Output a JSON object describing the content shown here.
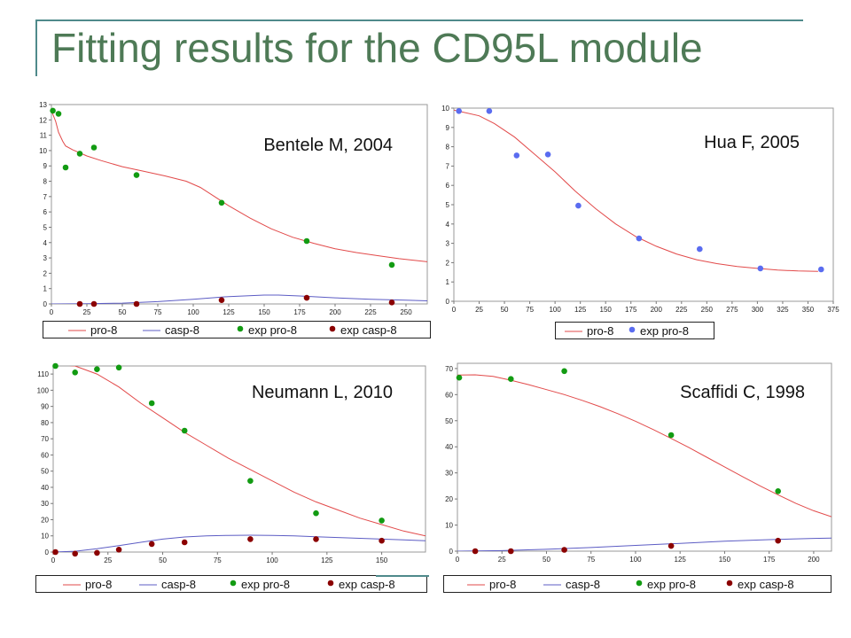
{
  "slide": {
    "title": "Fitting results for the CD95L module"
  },
  "colors": {
    "fit_pro": "#e24a4a",
    "fit_casp": "#5c5cc4",
    "exp_pro_green": "#129b12",
    "exp_pro_blue": "#5a6cf0",
    "exp_casp": "#8b0000",
    "title": "#4e7a56"
  },
  "chart_data": [
    {
      "type": "scatter",
      "title": "Bentele M, 2004",
      "xlim": [
        0,
        265
      ],
      "ylim": [
        0,
        13
      ],
      "xticks": [
        0,
        25,
        50,
        75,
        100,
        125,
        150,
        175,
        200,
        225,
        250
      ],
      "yticks": [
        0,
        1,
        2,
        3,
        4,
        5,
        6,
        7,
        8,
        9,
        10,
        11,
        12,
        13
      ],
      "legend": [
        "pro-8",
        "casp-8",
        "exp pro-8",
        "exp casp-8"
      ],
      "series": [
        {
          "name": "pro-8",
          "kind": "line",
          "color": "#e24a4a",
          "x": [
            0,
            3,
            5,
            8,
            10,
            15,
            20,
            25,
            35,
            50,
            65,
            80,
            95,
            105,
            115,
            125,
            140,
            155,
            170,
            185,
            200,
            215,
            230,
            245,
            265
          ],
          "y": [
            12.6,
            11.9,
            11.2,
            10.6,
            10.3,
            10.05,
            9.85,
            9.65,
            9.35,
            8.95,
            8.65,
            8.35,
            8.0,
            7.6,
            7.0,
            6.4,
            5.6,
            4.9,
            4.35,
            3.95,
            3.6,
            3.35,
            3.15,
            2.95,
            2.75
          ]
        },
        {
          "name": "casp-8",
          "kind": "line",
          "color": "#5c5cc4",
          "x": [
            0,
            25,
            50,
            75,
            100,
            125,
            150,
            160,
            175,
            200,
            225,
            250,
            265
          ],
          "y": [
            0,
            0.01,
            0.05,
            0.15,
            0.3,
            0.48,
            0.58,
            0.58,
            0.52,
            0.4,
            0.3,
            0.24,
            0.2
          ]
        },
        {
          "name": "exp pro-8",
          "kind": "points",
          "color": "#129b12",
          "x": [
            1,
            5,
            10,
            20,
            30,
            60,
            120,
            180,
            240
          ],
          "y": [
            12.6,
            12.4,
            8.9,
            9.8,
            10.2,
            8.4,
            6.6,
            4.1,
            2.55
          ]
        },
        {
          "name": "exp casp-8",
          "kind": "points",
          "color": "#8b0000",
          "x": [
            20,
            30,
            60,
            120,
            180,
            240
          ],
          "y": [
            0,
            0,
            0,
            0.25,
            0.4,
            0.1
          ]
        }
      ]
    },
    {
      "type": "scatter",
      "title": "Hua F, 2005",
      "xlim": [
        0,
        375
      ],
      "ylim": [
        0,
        10
      ],
      "xticks": [
        0,
        25,
        50,
        75,
        100,
        125,
        150,
        175,
        200,
        225,
        250,
        275,
        300,
        325,
        350,
        375
      ],
      "yticks": [
        0,
        1,
        2,
        3,
        4,
        5,
        6,
        7,
        8,
        9,
        10
      ],
      "legend": [
        "pro-8",
        "exp pro-8"
      ],
      "series": [
        {
          "name": "pro-8",
          "kind": "line",
          "color": "#e24a4a",
          "x": [
            0,
            25,
            40,
            60,
            80,
            100,
            120,
            140,
            160,
            180,
            200,
            220,
            240,
            260,
            280,
            300,
            320,
            340,
            360
          ],
          "y": [
            9.9,
            9.6,
            9.2,
            8.5,
            7.6,
            6.7,
            5.7,
            4.8,
            4.0,
            3.35,
            2.85,
            2.45,
            2.15,
            1.95,
            1.8,
            1.7,
            1.62,
            1.57,
            1.55
          ]
        },
        {
          "name": "exp pro-8",
          "kind": "points",
          "color": "#5a6cf0",
          "x": [
            5,
            35,
            62,
            93,
            123,
            183,
            243,
            303,
            363
          ],
          "y": [
            9.85,
            9.85,
            7.55,
            7.6,
            4.95,
            3.25,
            2.7,
            1.7,
            1.65
          ]
        }
      ]
    },
    {
      "type": "scatter",
      "title": "Neumann L, 2010",
      "xlim": [
        0,
        170
      ],
      "ylim": [
        0,
        115
      ],
      "xticks": [
        0,
        25,
        50,
        75,
        100,
        125,
        150
      ],
      "yticks": [
        0,
        10,
        20,
        30,
        40,
        50,
        60,
        70,
        80,
        90,
        100,
        110
      ],
      "legend": [
        "pro-8",
        "casp-8",
        "exp pro-8",
        "exp casp-8"
      ],
      "series": [
        {
          "name": "pro-8",
          "kind": "line",
          "color": "#e24a4a",
          "x": [
            0,
            10,
            20,
            30,
            40,
            50,
            60,
            70,
            80,
            90,
            100,
            110,
            120,
            130,
            140,
            150,
            160,
            170
          ],
          "y": [
            116,
            115,
            110,
            102,
            92,
            83,
            74,
            66,
            58,
            51,
            44,
            37,
            31,
            26,
            21,
            17,
            13,
            10
          ]
        },
        {
          "name": "casp-8",
          "kind": "line",
          "color": "#5c5cc4",
          "x": [
            0,
            10,
            20,
            30,
            40,
            50,
            60,
            70,
            80,
            90,
            100,
            110,
            120,
            130,
            140,
            150,
            160,
            170
          ],
          "y": [
            0,
            0.5,
            2,
            4,
            6,
            8,
            9.3,
            10,
            10.3,
            10.4,
            10.3,
            10,
            9.5,
            9,
            8.5,
            8,
            7.5,
            7
          ]
        },
        {
          "name": "exp pro-8",
          "kind": "points",
          "color": "#129b12",
          "x": [
            1,
            10,
            20,
            30,
            45,
            60,
            90,
            120,
            150
          ],
          "y": [
            115,
            111,
            113,
            114,
            92,
            75,
            44,
            24,
            19.5
          ]
        },
        {
          "name": "exp casp-8",
          "kind": "points",
          "color": "#8b0000",
          "x": [
            1,
            10,
            20,
            30,
            45,
            60,
            90,
            120,
            150
          ],
          "y": [
            0,
            -1,
            -0.5,
            1.5,
            5,
            6,
            8,
            8,
            7
          ]
        }
      ]
    },
    {
      "type": "scatter",
      "title": "Scaffidi C, 1998",
      "xlim": [
        0,
        210
      ],
      "ylim": [
        0,
        72
      ],
      "xticks": [
        0,
        25,
        50,
        75,
        100,
        125,
        150,
        175,
        200
      ],
      "yticks": [
        0,
        10,
        20,
        30,
        40,
        50,
        60,
        70
      ],
      "legend": [
        "pro-8",
        "casp-8",
        "exp pro-8",
        "exp casp-8"
      ],
      "series": [
        {
          "name": "pro-8",
          "kind": "line",
          "color": "#e24a4a",
          "x": [
            0,
            10,
            20,
            30,
            40,
            50,
            60,
            70,
            80,
            90,
            100,
            110,
            120,
            130,
            140,
            150,
            160,
            170,
            180,
            190,
            200,
            210
          ],
          "y": [
            67.5,
            67.6,
            67.0,
            65.5,
            63.8,
            61.9,
            60.0,
            57.8,
            55.4,
            52.7,
            49.8,
            46.6,
            43.2,
            39.7,
            36.0,
            32.3,
            28.6,
            25.0,
            21.6,
            18.3,
            15.5,
            13.2
          ]
        },
        {
          "name": "casp-8",
          "kind": "line",
          "color": "#5c5cc4",
          "x": [
            0,
            25,
            50,
            75,
            100,
            125,
            150,
            175,
            200,
            210
          ],
          "y": [
            0,
            0.2,
            0.7,
            1.4,
            2.2,
            3.0,
            3.8,
            4.4,
            4.9,
            5.0
          ]
        },
        {
          "name": "exp pro-8",
          "kind": "points",
          "color": "#129b12",
          "x": [
            1,
            30,
            60,
            120,
            180
          ],
          "y": [
            66.5,
            66,
            69,
            44.5,
            23
          ]
        },
        {
          "name": "exp casp-8",
          "kind": "points",
          "color": "#8b0000",
          "x": [
            10,
            30,
            60,
            120,
            180
          ],
          "y": [
            0,
            0,
            0.5,
            2,
            4
          ]
        }
      ]
    }
  ]
}
